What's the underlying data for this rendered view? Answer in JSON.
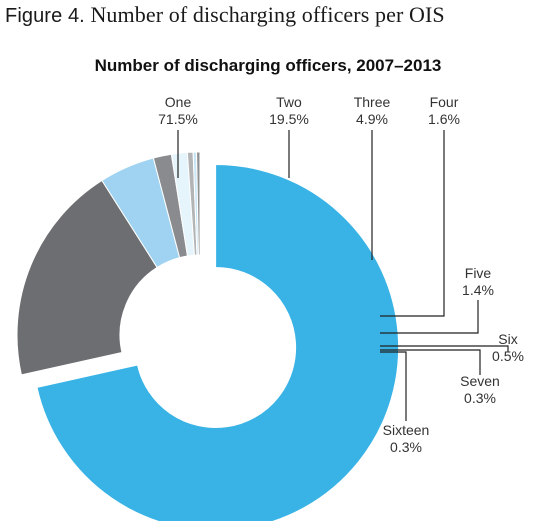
{
  "figure": {
    "label": "Figure 4.",
    "title": "Number of discharging officers per OIS"
  },
  "chart_data": {
    "type": "pie",
    "title": "Number of discharging officers, 2007–2013",
    "slices": [
      {
        "name": "One",
        "value": 71.5,
        "label": "71.5%",
        "color": "#39b3e6",
        "exploded": true
      },
      {
        "name": "Two",
        "value": 19.5,
        "label": "19.5%",
        "color": "#6d6e71"
      },
      {
        "name": "Three",
        "value": 4.9,
        "label": "4.9%",
        "color": "#9fd3f1"
      },
      {
        "name": "Four",
        "value": 1.6,
        "label": "1.6%",
        "color": "#8a8b8e"
      },
      {
        "name": "Five",
        "value": 1.4,
        "label": "1.4%",
        "color": "#e6f4fb"
      },
      {
        "name": "Six",
        "value": 0.5,
        "label": "0.5%",
        "color": "#b3b4b6"
      },
      {
        "name": "Seven",
        "value": 0.3,
        "label": "0.3%",
        "color": "#c9e6f6"
      },
      {
        "name": "Sixteen",
        "value": 0.3,
        "label": "0.3%",
        "color": "#8f9092"
      }
    ],
    "hole": true
  }
}
